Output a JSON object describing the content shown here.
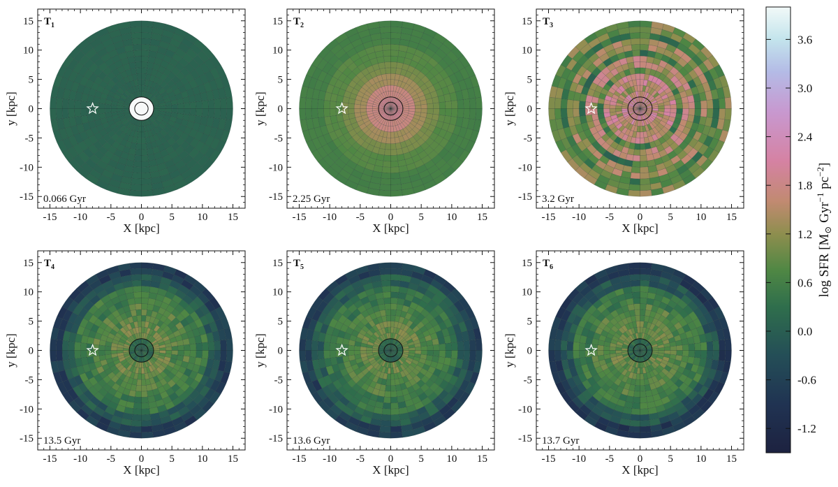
{
  "chart_data": [
    {
      "type": "heatmap",
      "panel": "T",
      "sub": "1",
      "time": "0.066 Gyr",
      "xlabel": "X [kpc]",
      "ylabel": "y [kpc]",
      "xlim": [
        -17,
        17
      ],
      "ylim": [
        -17,
        17
      ],
      "xticks": [
        "-15",
        "-10",
        "-5",
        "0",
        "5",
        "10",
        "15"
      ],
      "yticks": [
        "15",
        "10",
        "5",
        "0",
        "-5",
        "-10",
        "-15"
      ],
      "disk_radius": 15,
      "ring_profile": [
        {
          "r": [
            0,
            2
          ],
          "log_sfr": 4.0
        },
        {
          "r": [
            2,
            15
          ],
          "log_sfr": 0.1
        }
      ],
      "modulation": 0.05,
      "center_circle": {
        "r_outer": 2.0,
        "r_inner": 1.1,
        "fill": "#f7f9f9"
      },
      "star": {
        "x": -8,
        "y": 0
      }
    },
    {
      "type": "heatmap",
      "panel": "T",
      "sub": "2",
      "time": "2.25 Gyr",
      "xlabel": "X [kpc]",
      "ylabel": "y [kpc]",
      "xlim": [
        -17,
        17
      ],
      "ylim": [
        -17,
        17
      ],
      "xticks": [
        "-15",
        "-10",
        "-5",
        "0",
        "5",
        "10",
        "15"
      ],
      "yticks": [
        "15",
        "10",
        "5",
        "0",
        "-5",
        "-10",
        "-15"
      ],
      "disk_radius": 15,
      "ring_profile": [
        {
          "r": [
            0,
            2
          ],
          "log_sfr": 1.9
        },
        {
          "r": [
            2,
            4
          ],
          "log_sfr": 1.75
        },
        {
          "r": [
            4,
            6
          ],
          "log_sfr": 1.35
        },
        {
          "r": [
            6,
            8
          ],
          "log_sfr": 1.05
        },
        {
          "r": [
            8,
            11
          ],
          "log_sfr": 0.8
        },
        {
          "r": [
            11,
            15
          ],
          "log_sfr": 0.6
        }
      ],
      "modulation": 0.05,
      "center_circle": {
        "r_outer": 2.0,
        "r_inner": 1.1
      },
      "star": {
        "x": -8,
        "y": 0
      }
    },
    {
      "type": "heatmap",
      "panel": "T",
      "sub": "3",
      "time": "3.2 Gyr",
      "xlabel": "X [kpc]",
      "ylabel": "y [kpc]",
      "xlim": [
        -17,
        17
      ],
      "ylim": [
        -17,
        17
      ],
      "xticks": [
        "-15",
        "-10",
        "-5",
        "0",
        "5",
        "10",
        "15"
      ],
      "yticks": [
        "15",
        "10",
        "5",
        "0",
        "-5",
        "-10",
        "-15"
      ],
      "disk_radius": 15,
      "ring_profile": [
        {
          "r": [
            0,
            3
          ],
          "log_sfr": 1.85
        },
        {
          "r": [
            3,
            4.5
          ],
          "log_sfr": 1.3
        },
        {
          "r": [
            4.5,
            6
          ],
          "log_sfr": 1.7
        },
        {
          "r": [
            6,
            7.5
          ],
          "log_sfr": 0.7
        },
        {
          "r": [
            7.5,
            9
          ],
          "log_sfr": 1.5
        },
        {
          "r": [
            9,
            10.5
          ],
          "log_sfr": 0.5
        },
        {
          "r": [
            10.5,
            12
          ],
          "log_sfr": 1.2
        },
        {
          "r": [
            12,
            13.5
          ],
          "log_sfr": 0.6
        },
        {
          "r": [
            13.5,
            15
          ],
          "log_sfr": 1.0
        }
      ],
      "modulation": 0.45,
      "center_circle": {
        "r_outer": 2.0,
        "r_inner": 1.1
      },
      "star": {
        "x": -8,
        "y": 0
      }
    },
    {
      "type": "heatmap",
      "panel": "T",
      "sub": "4",
      "time": "13.5 Gyr",
      "xlabel": "X [kpc]",
      "ylabel": "y [kpc]",
      "xlim": [
        -17,
        17
      ],
      "ylim": [
        -17,
        17
      ],
      "xticks": [
        "-15",
        "-10",
        "-5",
        "0",
        "5",
        "10",
        "15"
      ],
      "yticks": [
        "15",
        "10",
        "5",
        "0",
        "-5",
        "-10",
        "-15"
      ],
      "disk_radius": 15,
      "ring_profile": [
        {
          "r": [
            0,
            2
          ],
          "log_sfr": 0.2
        },
        {
          "r": [
            2,
            5
          ],
          "log_sfr": 0.95
        },
        {
          "r": [
            5,
            8
          ],
          "log_sfr": 0.75
        },
        {
          "r": [
            8,
            11
          ],
          "log_sfr": 0.5
        },
        {
          "r": [
            11,
            13
          ],
          "log_sfr": -0.1
        },
        {
          "r": [
            13,
            15
          ],
          "log_sfr": -0.7
        }
      ],
      "modulation": 0.3,
      "center_circle": {
        "r_outer": 2.0,
        "r_inner": 1.1
      },
      "star": {
        "x": -8,
        "y": 0
      }
    },
    {
      "type": "heatmap",
      "panel": "T",
      "sub": "5",
      "time": "13.6 Gyr",
      "xlabel": "X [kpc]",
      "ylabel": "y [kpc]",
      "xlim": [
        -17,
        17
      ],
      "ylim": [
        -17,
        17
      ],
      "xticks": [
        "-15",
        "-10",
        "-5",
        "0",
        "5",
        "10",
        "15"
      ],
      "yticks": [
        "15",
        "10",
        "5",
        "0",
        "-5",
        "-10",
        "-15"
      ],
      "disk_radius": 15,
      "ring_profile": [
        {
          "r": [
            0,
            2
          ],
          "log_sfr": 0.2
        },
        {
          "r": [
            2,
            5
          ],
          "log_sfr": 0.9
        },
        {
          "r": [
            5,
            8
          ],
          "log_sfr": 0.7
        },
        {
          "r": [
            8,
            11
          ],
          "log_sfr": 0.45
        },
        {
          "r": [
            11,
            13
          ],
          "log_sfr": 0.0
        },
        {
          "r": [
            13,
            15
          ],
          "log_sfr": -0.6
        }
      ],
      "modulation": 0.3,
      "center_circle": {
        "r_outer": 2.0,
        "r_inner": 1.1
      },
      "star": {
        "x": -8,
        "y": 0
      }
    },
    {
      "type": "heatmap",
      "panel": "T",
      "sub": "6",
      "time": "13.7 Gyr",
      "xlabel": "X [kpc]",
      "ylabel": "y [kpc]",
      "xlim": [
        -17,
        17
      ],
      "ylim": [
        -17,
        17
      ],
      "xticks": [
        "-15",
        "-10",
        "-5",
        "0",
        "5",
        "10",
        "15"
      ],
      "yticks": [
        "15",
        "10",
        "5",
        "0",
        "-5",
        "-10",
        "-15"
      ],
      "disk_radius": 15,
      "ring_profile": [
        {
          "r": [
            0,
            2
          ],
          "log_sfr": 0.2
        },
        {
          "r": [
            2,
            5
          ],
          "log_sfr": 0.9
        },
        {
          "r": [
            5,
            8
          ],
          "log_sfr": 0.75
        },
        {
          "r": [
            8,
            11
          ],
          "log_sfr": 0.5
        },
        {
          "r": [
            11,
            13
          ],
          "log_sfr": -0.15
        },
        {
          "r": [
            13,
            15
          ],
          "log_sfr": -0.8
        }
      ],
      "modulation": 0.3,
      "center_circle": {
        "r_outer": 2.0,
        "r_inner": 1.1
      },
      "star": {
        "x": -8,
        "y": 0
      }
    }
  ],
  "colorbar": {
    "label_text": "log SFR [M",
    "label_sun": "⊙",
    "label_gyr": " Gyr",
    "label_exp1": "−1",
    "label_pc": " pc",
    "label_exp2": "−2",
    "label_close": "]",
    "range": [
      -1.5,
      4.0
    ],
    "ticks": [
      {
        "value": 3.6,
        "label": "3.6"
      },
      {
        "value": 3.0,
        "label": "3.0"
      },
      {
        "value": 2.4,
        "label": "2.4"
      },
      {
        "value": 1.8,
        "label": "1.8"
      },
      {
        "value": 1.2,
        "label": "1.2"
      },
      {
        "value": 0.6,
        "label": "0.6"
      },
      {
        "value": 0.0,
        "label": "0.0"
      },
      {
        "value": -0.6,
        "label": "-0.6"
      },
      {
        "value": -1.2,
        "label": "-1.2"
      }
    ],
    "colormap_stops": [
      {
        "value": -1.5,
        "color": "#1d2240"
      },
      {
        "value": -0.9,
        "color": "#203352"
      },
      {
        "value": -0.3,
        "color": "#244e57"
      },
      {
        "value": 0.3,
        "color": "#2f6e4c"
      },
      {
        "value": 0.75,
        "color": "#4f8744"
      },
      {
        "value": 1.2,
        "color": "#8e8e4e"
      },
      {
        "value": 1.6,
        "color": "#c18a71"
      },
      {
        "value": 2.1,
        "color": "#d582a3"
      },
      {
        "value": 2.7,
        "color": "#c898cf"
      },
      {
        "value": 3.2,
        "color": "#b4bbe6"
      },
      {
        "value": 3.6,
        "color": "#c3e4ec"
      },
      {
        "value": 4.0,
        "color": "#f2f9f8"
      }
    ]
  }
}
